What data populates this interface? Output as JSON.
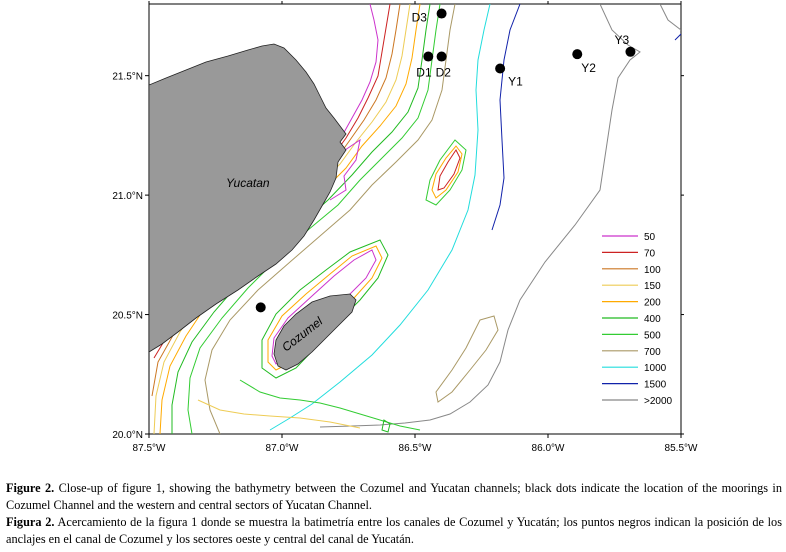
{
  "map": {
    "x_ticks": [
      "87.5°W",
      "87.0°W",
      "86.5°W",
      "86.0°W",
      "85.5°W"
    ],
    "y_ticks": [
      "21.5°N",
      "21.0°N",
      "20.5°N",
      "20.0°N"
    ],
    "land_labels": {
      "mainland": "Yucatan",
      "island": "Cozumel"
    },
    "stations": [
      {
        "name": "D3",
        "lon": -86.4,
        "lat": 21.76
      },
      {
        "name": "D1",
        "lon": -86.45,
        "lat": 21.58
      },
      {
        "name": "D2",
        "lon": -86.4,
        "lat": 21.58
      },
      {
        "name": "Y1",
        "lon": -86.18,
        "lat": 21.53
      },
      {
        "name": "Y2",
        "lon": -85.89,
        "lat": 21.59
      },
      {
        "name": "Y3",
        "lon": -85.69,
        "lat": 21.6
      },
      {
        "name": "",
        "lon": -87.08,
        "lat": 20.53
      }
    ],
    "legend": [
      {
        "label": "50",
        "color": "#cc33cc"
      },
      {
        "label": "70",
        "color": "#cc2222"
      },
      {
        "label": "100",
        "color": "#cc7722"
      },
      {
        "label": "150",
        "color": "#eecc55"
      },
      {
        "label": "200",
        "color": "#ffaa00"
      },
      {
        "label": "400",
        "color": "#22bb22"
      },
      {
        "label": "500",
        "color": "#33cc33"
      },
      {
        "label": "700",
        "color": "#aa9966"
      },
      {
        "label": "1000",
        "color": "#22dddd"
      },
      {
        "label": "1500",
        "color": "#1122aa"
      },
      {
        "label": ">2000",
        "color": "#888888"
      }
    ]
  },
  "captions": {
    "en_label": "Figure 2.",
    "en_text": " Close-up of figure 1, showing the bathymetry between the Cozumel and Yucatan channels; black dots indicate the location of the moorings in Cozumel Channel and the western and central sectors of Yucatan Channel.",
    "es_label": "Figura 2.",
    "es_text": " Acercamiento de la figura 1 donde se muestra la batimetría entre los canales de Cozumel y Yucatán; los puntos negros indican la posición de los anclajes en el canal de Cozumel y los sectores oeste y central del canal de Yucatán."
  }
}
